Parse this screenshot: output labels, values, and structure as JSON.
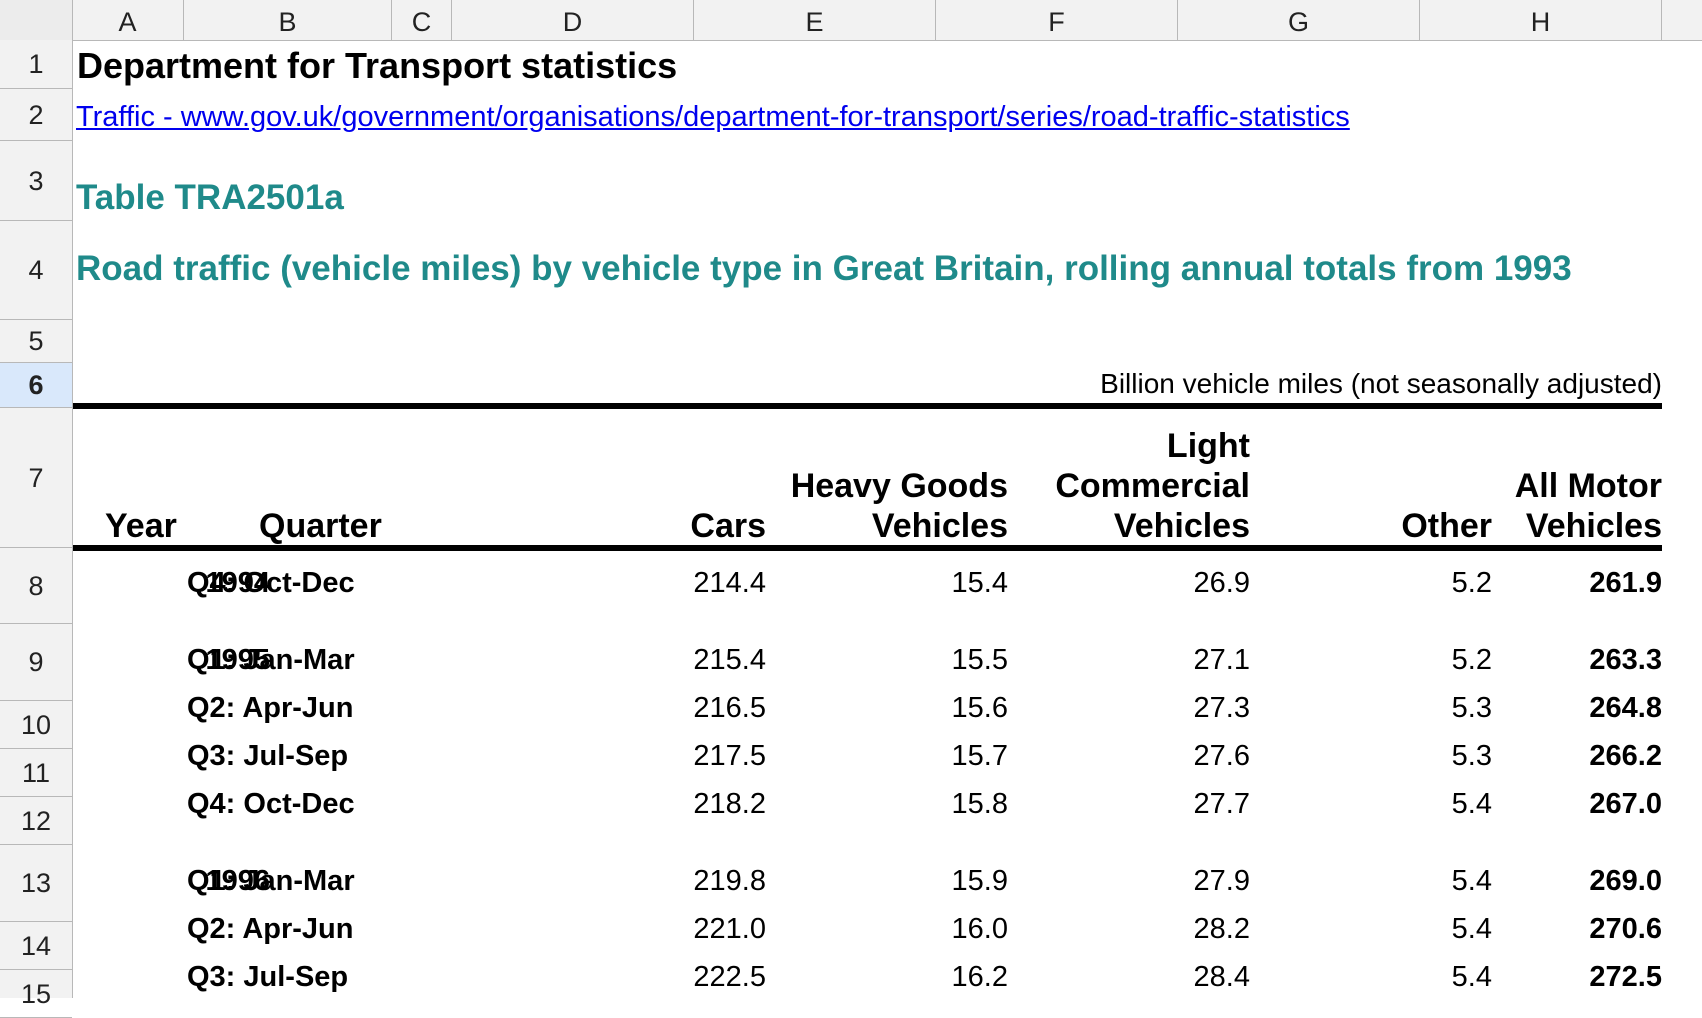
{
  "columns": [
    "A",
    "B",
    "C",
    "D",
    "E",
    "F",
    "G",
    "H"
  ],
  "rows": [
    "1",
    "2",
    "3",
    "4",
    "5",
    "6",
    "7",
    "8",
    "9",
    "10",
    "11",
    "12",
    "13",
    "14",
    "15"
  ],
  "selected_row": "6",
  "sheet": {
    "title": "Department for Transport statistics",
    "link": "Traffic - www.gov.uk/government/organisations/department-for-transport/series/road-traffic-statistics",
    "table_id": "Table TRA2501a",
    "table_title": "Road traffic (vehicle miles) by vehicle type in Great Britain, rolling annual totals from 1993",
    "units": "Billion vehicle miles (not seasonally adjusted)"
  },
  "headers": {
    "year": "Year",
    "quarter": "Quarter",
    "cars": "Cars",
    "hgv_line1": "Heavy Goods",
    "hgv_line2": "Vehicles",
    "lcv_line1": "Light",
    "lcv_line2": "Commercial",
    "lcv_line3": "Vehicles",
    "other": "Other",
    "all_line1": "All Motor",
    "all_line2": "Vehicles"
  },
  "data_rows": [
    {
      "year": "1994",
      "quarter": "Q4: Oct-Dec",
      "cars": "214.4",
      "hgv": "15.4",
      "lcv": "26.9",
      "other": "5.2",
      "all": "261.9"
    },
    {
      "year": "1995",
      "quarter": "Q1: Jan-Mar",
      "cars": "215.4",
      "hgv": "15.5",
      "lcv": "27.1",
      "other": "5.2",
      "all": "263.3"
    },
    {
      "year": "",
      "quarter": "Q2: Apr-Jun",
      "cars": "216.5",
      "hgv": "15.6",
      "lcv": "27.3",
      "other": "5.3",
      "all": "264.8"
    },
    {
      "year": "",
      "quarter": "Q3: Jul-Sep",
      "cars": "217.5",
      "hgv": "15.7",
      "lcv": "27.6",
      "other": "5.3",
      "all": "266.2"
    },
    {
      "year": "",
      "quarter": "Q4: Oct-Dec",
      "cars": "218.2",
      "hgv": "15.8",
      "lcv": "27.7",
      "other": "5.4",
      "all": "267.0"
    },
    {
      "year": "1996",
      "quarter": "Q1: Jan-Mar",
      "cars": "219.8",
      "hgv": "15.9",
      "lcv": "27.9",
      "other": "5.4",
      "all": "269.0"
    },
    {
      "year": "",
      "quarter": "Q2: Apr-Jun",
      "cars": "221.0",
      "hgv": "16.0",
      "lcv": "28.2",
      "other": "5.4",
      "all": "270.6"
    },
    {
      "year": "",
      "quarter": "Q3: Jul-Sep",
      "cars": "222.5",
      "hgv": "16.2",
      "lcv": "28.4",
      "other": "5.4",
      "all": "272.5"
    }
  ]
}
